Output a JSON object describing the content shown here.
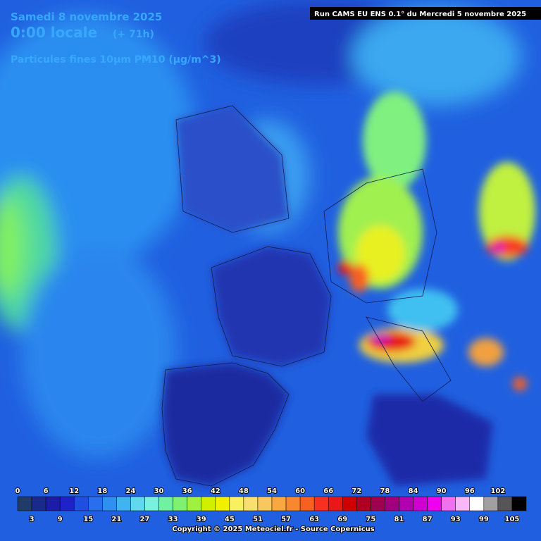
{
  "header": {
    "date": "Samedi 8 novembre 2025",
    "time": "0:00 locale",
    "offset": "(+ 71h)",
    "parameter": "Particules fines 10µm PM10 (µg/m^3)",
    "run": "Run CAMS EU ENS 0.1° du Mercredi 5 novembre 2025"
  },
  "legend": {
    "ticks": [
      0,
      3,
      6,
      9,
      12,
      15,
      18,
      21,
      24,
      27,
      30,
      33,
      36,
      39,
      42,
      45,
      48,
      51,
      54,
      57,
      60,
      63,
      66,
      69,
      72,
      75,
      78,
      81,
      84,
      87,
      90,
      93,
      96,
      99,
      102,
      105
    ],
    "colors": [
      "#203a6a",
      "#1a2a8c",
      "#1c1ca8",
      "#1e22c8",
      "#1f4ee0",
      "#2a6ef0",
      "#2e90f0",
      "#40b4f0",
      "#60d8f0",
      "#7af0e0",
      "#70f0a0",
      "#80f070",
      "#a0f040",
      "#d0f000",
      "#f0f000",
      "#f8f060",
      "#f8e070",
      "#f8c860",
      "#f8a840",
      "#f88830",
      "#f86020",
      "#f83020",
      "#e81818",
      "#d00000",
      "#b00020",
      "#a00050",
      "#a00080",
      "#b000b0",
      "#d000d0",
      "#f000f0",
      "#f070f0",
      "#f8b8f8",
      "#ffffff",
      "#a0a0a0",
      "#555555",
      "#000000"
    ]
  },
  "footer": {
    "copyright": "Copyright © 2025 Meteociel.fr - Source Copernicus"
  }
}
